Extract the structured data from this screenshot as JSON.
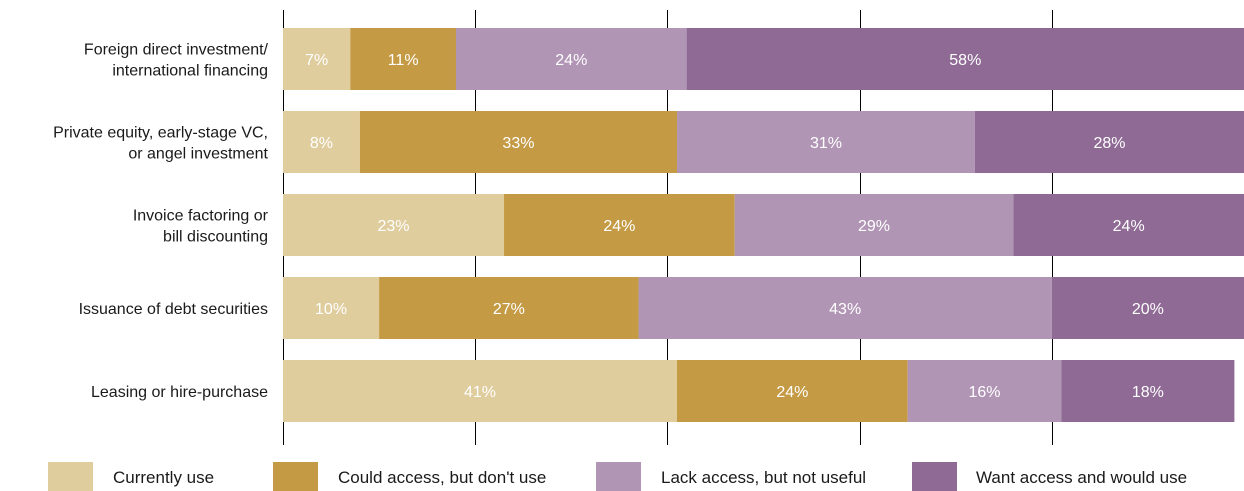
{
  "chart_data": {
    "type": "bar",
    "orientation": "horizontal",
    "stacked": true,
    "categories": [
      [
        "Foreign direct investment/",
        "international financing"
      ],
      [
        "Private equity, early-stage VC,",
        "or angel investment"
      ],
      [
        "Invoice factoring or",
        "bill discounting"
      ],
      [
        "Issuance of debt securities"
      ],
      [
        "Leasing or hire-purchase"
      ]
    ],
    "series": [
      {
        "name": "Currently use",
        "color": "#e0cd9e",
        "values": [
          7,
          8,
          23,
          10,
          41
        ],
        "labels": [
          "7%",
          "8%",
          "23%",
          "10%",
          "41%"
        ]
      },
      {
        "name": "Could access, but don't use",
        "color": "#c49a44",
        "values": [
          11,
          33,
          24,
          27,
          24
        ],
        "labels": [
          "11%",
          "33%",
          "24%",
          "27%",
          "24%"
        ]
      },
      {
        "name": "Lack access, but not useful",
        "color": "#b195b5",
        "values": [
          24,
          31,
          29,
          43,
          16
        ],
        "labels": [
          "24%",
          "31%",
          "29%",
          "43%",
          "16%"
        ]
      },
      {
        "name": "Want access and would use",
        "color": "#8e6a94",
        "values": [
          58,
          28,
          24,
          20,
          18
        ],
        "labels": [
          "58%",
          "28%",
          "24%",
          "20%",
          "18%"
        ]
      }
    ],
    "xlim": [
      0,
      100
    ],
    "gridlines_at": [
      0,
      20,
      40,
      60,
      80,
      100
    ],
    "grid": true,
    "legend_position": "bottom"
  }
}
